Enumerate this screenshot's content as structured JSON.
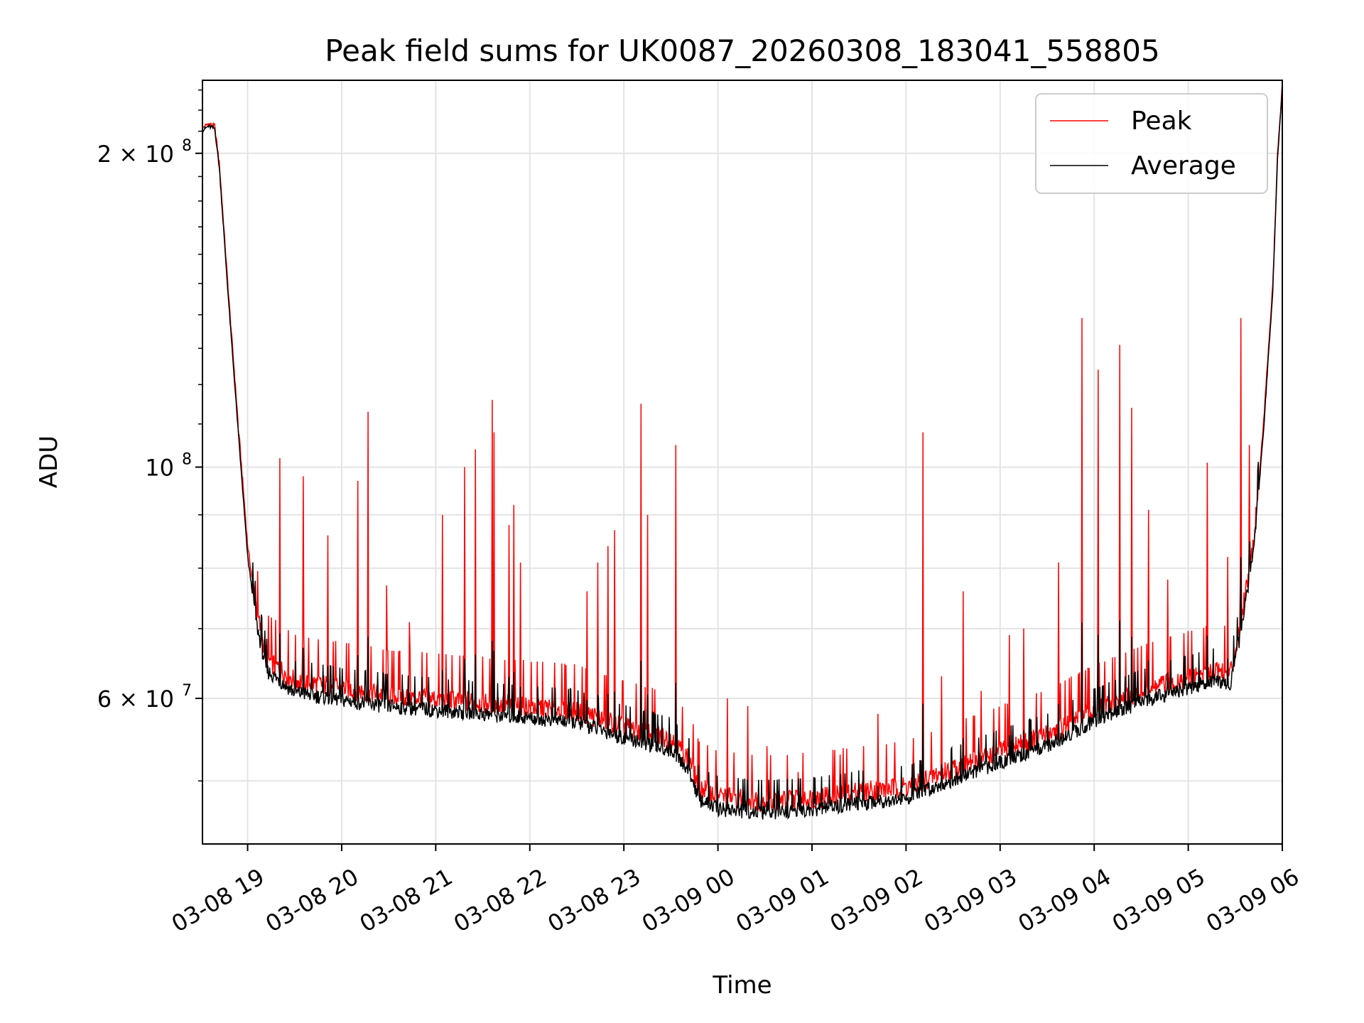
{
  "chart_data": {
    "type": "line",
    "title": "Peak field sums for UK0087_20260308_183041_558805",
    "xlabel": "Time",
    "ylabel": "ADU",
    "yscale": "log",
    "ylim": [
      43500000,
      235000000
    ],
    "xlim": [
      -0.48,
      11.0
    ],
    "grid": true,
    "legend_position": "top-right",
    "x_ticks": [
      {
        "value": 0,
        "label": "03-08 19"
      },
      {
        "value": 1,
        "label": "03-08 20"
      },
      {
        "value": 2,
        "label": "03-08 21"
      },
      {
        "value": 3,
        "label": "03-08 22"
      },
      {
        "value": 4,
        "label": "03-08 23"
      },
      {
        "value": 5,
        "label": "03-09 00"
      },
      {
        "value": 6,
        "label": "03-09 01"
      },
      {
        "value": 7,
        "label": "03-09 02"
      },
      {
        "value": 8,
        "label": "03-09 03"
      },
      {
        "value": 9,
        "label": "03-09 04"
      },
      {
        "value": 10,
        "label": "03-09 05"
      },
      {
        "value": 11,
        "label": "03-09 06"
      }
    ],
    "y_ticks": [
      {
        "value": 60000000,
        "label": "6 × 10",
        "exp": "7"
      },
      {
        "value": 100000000,
        "label": "10",
        "exp": "8"
      },
      {
        "value": 200000000,
        "label": "2 × 10",
        "exp": "8"
      }
    ],
    "series": [
      {
        "name": "Peak",
        "color": "#ff0000",
        "baseline": {
          "x": [
            -0.48,
            -0.42,
            -0.35,
            -0.3,
            -0.2,
            -0.1,
            0.0,
            0.1,
            0.2,
            0.5,
            1.0,
            1.5,
            2.0,
            2.5,
            3.0,
            3.5,
            4.0,
            4.5,
            4.7,
            4.8,
            5.0,
            5.5,
            6.0,
            6.5,
            7.0,
            7.5,
            8.0,
            8.5,
            9.0,
            9.5,
            10.0,
            10.3,
            10.45,
            10.55,
            10.7,
            10.8,
            10.9,
            10.95,
            11.0
          ],
          "y": [
            211000000,
            213000000,
            212000000,
            195000000,
            145000000,
            110000000,
            84000000,
            72000000,
            65000000,
            62000000,
            61000000,
            60000000,
            59500000,
            59000000,
            58500000,
            58000000,
            56000000,
            54500000,
            52000000,
            49000000,
            48000000,
            47500000,
            47800000,
            48500000,
            49000000,
            51000000,
            53000000,
            55000000,
            58000000,
            60500000,
            62500000,
            63500000,
            63000000,
            70000000,
            85000000,
            110000000,
            150000000,
            200000000,
            232000000
          ]
        },
        "spikes": [
          {
            "x": -0.1,
            "y": 107000000
          },
          {
            "x": 0.34,
            "y": 102000000
          },
          {
            "x": 0.59,
            "y": 98000000
          },
          {
            "x": 0.85,
            "y": 86000000
          },
          {
            "x": 1.17,
            "y": 97000000
          },
          {
            "x": 1.28,
            "y": 113000000
          },
          {
            "x": 1.48,
            "y": 77000000
          },
          {
            "x": 1.72,
            "y": 71000000
          },
          {
            "x": 2.07,
            "y": 90000000
          },
          {
            "x": 2.31,
            "y": 100000000
          },
          {
            "x": 2.42,
            "y": 104000000
          },
          {
            "x": 2.6,
            "y": 116000000
          },
          {
            "x": 2.62,
            "y": 108000000
          },
          {
            "x": 2.78,
            "y": 88000000
          },
          {
            "x": 2.83,
            "y": 92000000
          },
          {
            "x": 2.9,
            "y": 81000000
          },
          {
            "x": 3.61,
            "y": 76000000
          },
          {
            "x": 3.72,
            "y": 81000000
          },
          {
            "x": 3.83,
            "y": 84000000
          },
          {
            "x": 3.9,
            "y": 87000000
          },
          {
            "x": 4.18,
            "y": 115000000
          },
          {
            "x": 4.25,
            "y": 90000000
          },
          {
            "x": 4.55,
            "y": 105000000
          },
          {
            "x": 5.1,
            "y": 60000000
          },
          {
            "x": 5.32,
            "y": 59000000
          },
          {
            "x": 5.52,
            "y": 54000000
          },
          {
            "x": 5.85,
            "y": 51000000
          },
          {
            "x": 6.3,
            "y": 53000000
          },
          {
            "x": 6.7,
            "y": 58000000
          },
          {
            "x": 7.18,
            "y": 108000000
          },
          {
            "x": 7.38,
            "y": 63000000
          },
          {
            "x": 7.61,
            "y": 76000000
          },
          {
            "x": 7.8,
            "y": 61000000
          },
          {
            "x": 8.1,
            "y": 69000000
          },
          {
            "x": 8.25,
            "y": 70000000
          },
          {
            "x": 8.62,
            "y": 81000000
          },
          {
            "x": 8.87,
            "y": 139000000
          },
          {
            "x": 9.04,
            "y": 124000000
          },
          {
            "x": 9.27,
            "y": 131000000
          },
          {
            "x": 9.4,
            "y": 114000000
          },
          {
            "x": 9.58,
            "y": 91000000
          },
          {
            "x": 9.78,
            "y": 78000000
          },
          {
            "x": 10.2,
            "y": 101000000
          },
          {
            "x": 10.42,
            "y": 82000000
          },
          {
            "x": 10.56,
            "y": 139000000
          },
          {
            "x": 10.65,
            "y": 105000000
          }
        ]
      },
      {
        "name": "Average",
        "color": "#000000",
        "baseline": {
          "x": [
            -0.48,
            -0.42,
            -0.35,
            -0.3,
            -0.2,
            -0.1,
            0.0,
            0.1,
            0.2,
            0.5,
            1.0,
            1.5,
            2.0,
            2.5,
            3.0,
            3.5,
            4.0,
            4.5,
            4.7,
            4.8,
            5.0,
            5.5,
            6.0,
            6.5,
            7.0,
            7.5,
            8.0,
            8.5,
            9.0,
            9.5,
            10.0,
            10.3,
            10.45,
            10.55,
            10.7,
            10.8,
            10.9,
            10.95,
            11.0
          ],
          "y": [
            210000000,
            212000000,
            211000000,
            193000000,
            143000000,
            108000000,
            82000000,
            70000000,
            63500000,
            60500000,
            59500000,
            58700000,
            58200000,
            57700000,
            57200000,
            56700000,
            54800000,
            53300000,
            50800000,
            47800000,
            46800000,
            46400000,
            46700000,
            47400000,
            47900000,
            49900000,
            51900000,
            53800000,
            56800000,
            59300000,
            61200000,
            62200000,
            61800000,
            68500000,
            83500000,
            108000000,
            148000000,
            198000000,
            231000000
          ]
        }
      }
    ]
  }
}
